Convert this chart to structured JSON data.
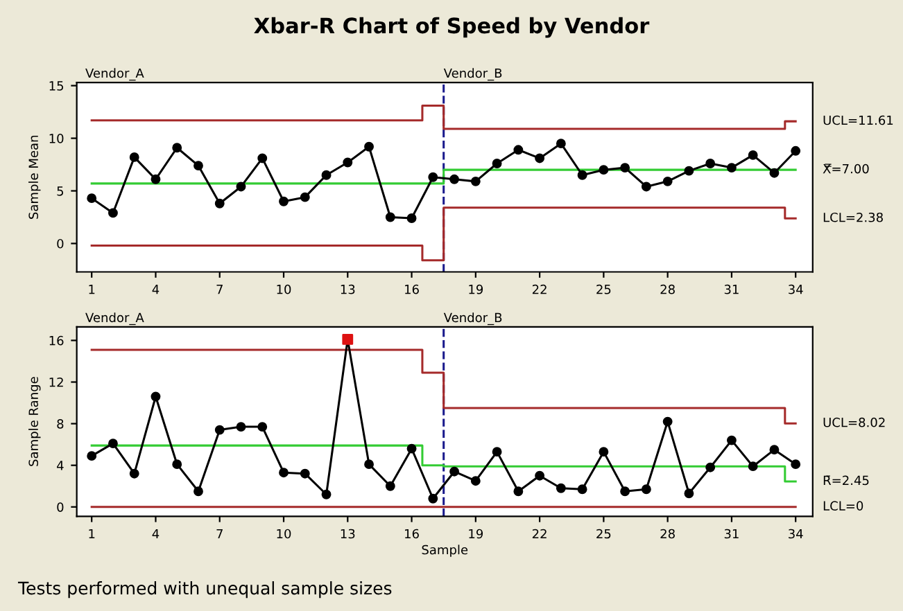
{
  "chart_data": [
    {
      "type": "line",
      "title": "Xbar-R Chart of Speed by Vendor",
      "ylabel": "Sample Mean",
      "xlim": [
        0.3,
        34.8
      ],
      "ylim": [
        -2.7,
        15.3
      ],
      "xticks": [
        1,
        4,
        7,
        10,
        13,
        16,
        19,
        22,
        25,
        28,
        31,
        34
      ],
      "yticks": [
        0,
        5,
        10,
        15
      ],
      "grid": false,
      "marker": "circle",
      "line_style": "solid",
      "annotations": [
        "Vendor_A",
        "Vendor_B"
      ],
      "ref_lines": [
        {
          "axis": "x",
          "value": 17.5,
          "color": "#1a1a8c",
          "line_style": "dashed"
        }
      ],
      "series": [
        {
          "color": "#000000",
          "x": [
            1,
            2,
            3,
            4,
            5,
            6,
            7,
            8,
            9,
            10,
            11,
            12,
            13,
            14,
            15,
            16,
            17,
            18,
            19,
            20,
            21,
            22,
            23,
            24,
            25,
            26,
            27,
            28,
            29,
            30,
            31,
            32,
            33,
            34
          ],
          "values": [
            4.3,
            2.9,
            8.2,
            6.1,
            9.1,
            7.4,
            3.8,
            5.4,
            8.1,
            4.0,
            4.4,
            6.5,
            7.7,
            9.2,
            2.5,
            2.4,
            6.3,
            6.1,
            5.9,
            7.6,
            8.9,
            8.1,
            9.5,
            6.5,
            7.0,
            7.2,
            5.4,
            5.9,
            6.9,
            7.6,
            7.2,
            8.4,
            6.7,
            8.8
          ]
        },
        {
          "type": "step",
          "marker": "none",
          "name": "UCL=11.61",
          "color": "#a52a2a",
          "x": [
            1,
            2,
            3,
            4,
            5,
            6,
            7,
            8,
            9,
            10,
            11,
            12,
            13,
            14,
            15,
            16,
            17,
            18,
            19,
            20,
            21,
            22,
            23,
            24,
            25,
            26,
            27,
            28,
            29,
            30,
            31,
            32,
            33,
            34
          ],
          "values": [
            11.7,
            11.7,
            11.7,
            11.7,
            11.7,
            11.7,
            11.7,
            11.7,
            11.7,
            11.7,
            11.7,
            11.7,
            11.7,
            11.7,
            11.7,
            11.7,
            13.1,
            10.9,
            10.9,
            10.9,
            10.9,
            10.9,
            10.9,
            10.9,
            10.9,
            10.9,
            10.9,
            10.9,
            10.9,
            10.9,
            10.9,
            10.9,
            10.9,
            11.61
          ]
        },
        {
          "type": "step",
          "marker": "none",
          "name": "X̿=7.00",
          "color": "#33cc33",
          "x": [
            1,
            2,
            3,
            4,
            5,
            6,
            7,
            8,
            9,
            10,
            11,
            12,
            13,
            14,
            15,
            16,
            17,
            18,
            19,
            20,
            21,
            22,
            23,
            24,
            25,
            26,
            27,
            28,
            29,
            30,
            31,
            32,
            33,
            34
          ],
          "values": [
            5.7,
            5.7,
            5.7,
            5.7,
            5.7,
            5.7,
            5.7,
            5.7,
            5.7,
            5.7,
            5.7,
            5.7,
            5.7,
            5.7,
            5.7,
            5.7,
            5.7,
            7.0,
            7.0,
            7.0,
            7.0,
            7.0,
            7.0,
            7.0,
            7.0,
            7.0,
            7.0,
            7.0,
            7.0,
            7.0,
            7.0,
            7.0,
            7.0,
            7.0
          ]
        },
        {
          "type": "step",
          "marker": "none",
          "name": "LCL=2.38",
          "color": "#a52a2a",
          "x": [
            1,
            2,
            3,
            4,
            5,
            6,
            7,
            8,
            9,
            10,
            11,
            12,
            13,
            14,
            15,
            16,
            17,
            18,
            19,
            20,
            21,
            22,
            23,
            24,
            25,
            26,
            27,
            28,
            29,
            30,
            31,
            32,
            33,
            34
          ],
          "values": [
            -0.2,
            -0.2,
            -0.2,
            -0.2,
            -0.2,
            -0.2,
            -0.2,
            -0.2,
            -0.2,
            -0.2,
            -0.2,
            -0.2,
            -0.2,
            -0.2,
            -0.2,
            -0.2,
            -1.6,
            3.4,
            3.4,
            3.4,
            3.4,
            3.4,
            3.4,
            3.4,
            3.4,
            3.4,
            3.4,
            3.4,
            3.4,
            3.4,
            3.4,
            3.4,
            3.4,
            2.38
          ]
        }
      ]
    },
    {
      "type": "line",
      "xlabel": "Sample",
      "ylabel": "Sample Range",
      "xlim": [
        0.3,
        34.8
      ],
      "ylim": [
        -0.9,
        17.3
      ],
      "xticks": [
        1,
        4,
        7,
        10,
        13,
        16,
        19,
        22,
        25,
        28,
        31,
        34
      ],
      "yticks": [
        0,
        4,
        8,
        12,
        16
      ],
      "grid": false,
      "marker": "circle",
      "line_style": "solid",
      "annotations": [
        "Vendor_A",
        "Vendor_B",
        "Tests performed with unequal sample sizes"
      ],
      "ref_lines": [
        {
          "axis": "x",
          "value": 17.5,
          "color": "#1a1a8c",
          "line_style": "dashed"
        }
      ],
      "series": [
        {
          "color": "#000000",
          "x": [
            1,
            2,
            3,
            4,
            5,
            6,
            7,
            8,
            9,
            10,
            11,
            12,
            13,
            14,
            15,
            16,
            17,
            18,
            19,
            20,
            21,
            22,
            23,
            24,
            25,
            26,
            27,
            28,
            29,
            30,
            31,
            32,
            33,
            34
          ],
          "values": [
            4.9,
            6.1,
            3.2,
            10.6,
            4.1,
            1.5,
            7.4,
            7.7,
            7.7,
            3.3,
            3.2,
            1.2,
            16.1,
            4.1,
            2.0,
            5.6,
            0.8,
            3.4,
            2.5,
            5.3,
            1.5,
            3.0,
            1.8,
            1.7,
            5.3,
            1.5,
            1.7,
            8.2,
            1.3,
            3.8,
            6.4,
            3.9,
            5.5,
            4.1
          ]
        },
        {
          "type": "scatter",
          "marker": "square",
          "color": "#dd1111",
          "x": [
            13
          ],
          "values": [
            16.1
          ]
        },
        {
          "type": "step",
          "marker": "none",
          "name": "UCL=8.02",
          "color": "#a52a2a",
          "x": [
            1,
            2,
            3,
            4,
            5,
            6,
            7,
            8,
            9,
            10,
            11,
            12,
            13,
            14,
            15,
            16,
            17,
            18,
            19,
            20,
            21,
            22,
            23,
            24,
            25,
            26,
            27,
            28,
            29,
            30,
            31,
            32,
            33,
            34
          ],
          "values": [
            15.1,
            15.1,
            15.1,
            15.1,
            15.1,
            15.1,
            15.1,
            15.1,
            15.1,
            15.1,
            15.1,
            15.1,
            15.1,
            15.1,
            15.1,
            15.1,
            12.9,
            9.5,
            9.5,
            9.5,
            9.5,
            9.5,
            9.5,
            9.5,
            9.5,
            9.5,
            9.5,
            9.5,
            9.5,
            9.5,
            9.5,
            9.5,
            9.5,
            8.02
          ]
        },
        {
          "type": "step",
          "marker": "none",
          "name": "R̄=2.45",
          "color": "#33cc33",
          "x": [
            1,
            2,
            3,
            4,
            5,
            6,
            7,
            8,
            9,
            10,
            11,
            12,
            13,
            14,
            15,
            16,
            17,
            18,
            19,
            20,
            21,
            22,
            23,
            24,
            25,
            26,
            27,
            28,
            29,
            30,
            31,
            32,
            33,
            34
          ],
          "values": [
            5.9,
            5.9,
            5.9,
            5.9,
            5.9,
            5.9,
            5.9,
            5.9,
            5.9,
            5.9,
            5.9,
            5.9,
            5.9,
            5.9,
            5.9,
            5.9,
            4.0,
            3.9,
            3.9,
            3.9,
            3.9,
            3.9,
            3.9,
            3.9,
            3.9,
            3.9,
            3.9,
            3.9,
            3.9,
            3.9,
            3.9,
            3.9,
            3.9,
            2.45
          ]
        },
        {
          "type": "step",
          "marker": "none",
          "name": "LCL=0",
          "color": "#a52a2a",
          "x": [
            1,
            2,
            3,
            4,
            5,
            6,
            7,
            8,
            9,
            10,
            11,
            12,
            13,
            14,
            15,
            16,
            17,
            18,
            19,
            20,
            21,
            22,
            23,
            24,
            25,
            26,
            27,
            28,
            29,
            30,
            31,
            32,
            33,
            34
          ],
          "values": [
            0,
            0,
            0,
            0,
            0,
            0,
            0,
            0,
            0,
            0,
            0,
            0,
            0,
            0,
            0,
            0,
            0,
            0,
            0,
            0,
            0,
            0,
            0,
            0,
            0,
            0,
            0,
            0,
            0,
            0,
            0,
            0,
            0,
            0
          ]
        }
      ]
    }
  ]
}
